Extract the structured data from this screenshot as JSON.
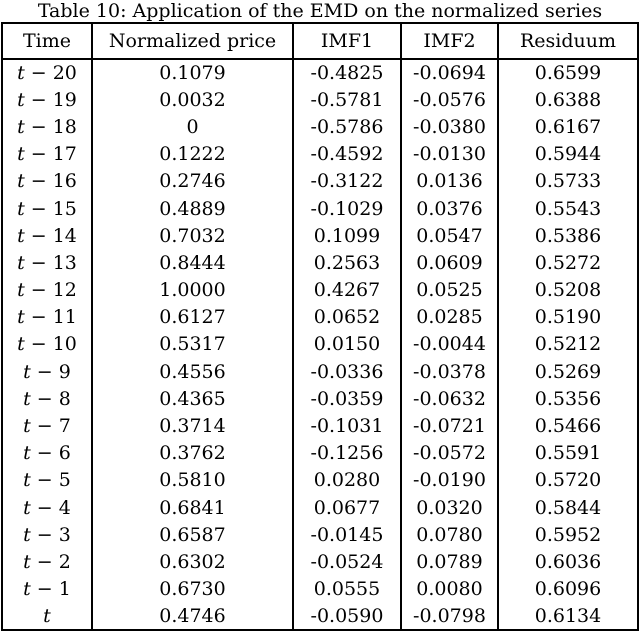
{
  "caption": "Table 10: Application of the EMD on the normalized series",
  "table": {
    "headers": [
      "Time",
      "Normalized price",
      "IMF1",
      "IMF2",
      "Residuum"
    ],
    "rows": [
      [
        "t − 20",
        "0.1079",
        "-0.4825",
        "-0.0694",
        "0.6599"
      ],
      [
        "t − 19",
        "0.0032",
        "-0.5781",
        "-0.0576",
        "0.6388"
      ],
      [
        "t − 18",
        "0",
        "-0.5786",
        "-0.0380",
        "0.6167"
      ],
      [
        "t − 17",
        "0.1222",
        "-0.4592",
        "-0.0130",
        "0.5944"
      ],
      [
        "t − 16",
        "0.2746",
        "-0.3122",
        "0.0136",
        "0.5733"
      ],
      [
        "t − 15",
        "0.4889",
        "-0.1029",
        "0.0376",
        "0.5543"
      ],
      [
        "t − 14",
        "0.7032",
        "0.1099",
        "0.0547",
        "0.5386"
      ],
      [
        "t − 13",
        "0.8444",
        "0.2563",
        "0.0609",
        "0.5272"
      ],
      [
        "t − 12",
        "1.0000",
        "0.4267",
        "0.0525",
        "0.5208"
      ],
      [
        "t − 11",
        "0.6127",
        "0.0652",
        "0.0285",
        "0.5190"
      ],
      [
        "t − 10",
        "0.5317",
        "0.0150",
        "-0.0044",
        "0.5212"
      ],
      [
        "t − 9",
        "0.4556",
        "-0.0336",
        "-0.0378",
        "0.5269"
      ],
      [
        "t − 8",
        "0.4365",
        "-0.0359",
        "-0.0632",
        "0.5356"
      ],
      [
        "t − 7",
        "0.3714",
        "-0.1031",
        "-0.0721",
        "0.5466"
      ],
      [
        "t − 6",
        "0.3762",
        "-0.1256",
        "-0.0572",
        "0.5591"
      ],
      [
        "t − 5",
        "0.5810",
        "0.0280",
        "-0.0190",
        "0.5720"
      ],
      [
        "t − 4",
        "0.6841",
        "0.0677",
        "0.0320",
        "0.5844"
      ],
      [
        "t − 3",
        "0.6587",
        "-0.0145",
        "0.0780",
        "0.5952"
      ],
      [
        "t − 2",
        "0.6302",
        "-0.0524",
        "0.0789",
        "0.6036"
      ],
      [
        "t − 1",
        "0.6730",
        "0.0555",
        "0.0080",
        "0.6096"
      ],
      [
        "t",
        "0.4746",
        "-0.0590",
        "-0.0798",
        "0.6134"
      ]
    ]
  }
}
